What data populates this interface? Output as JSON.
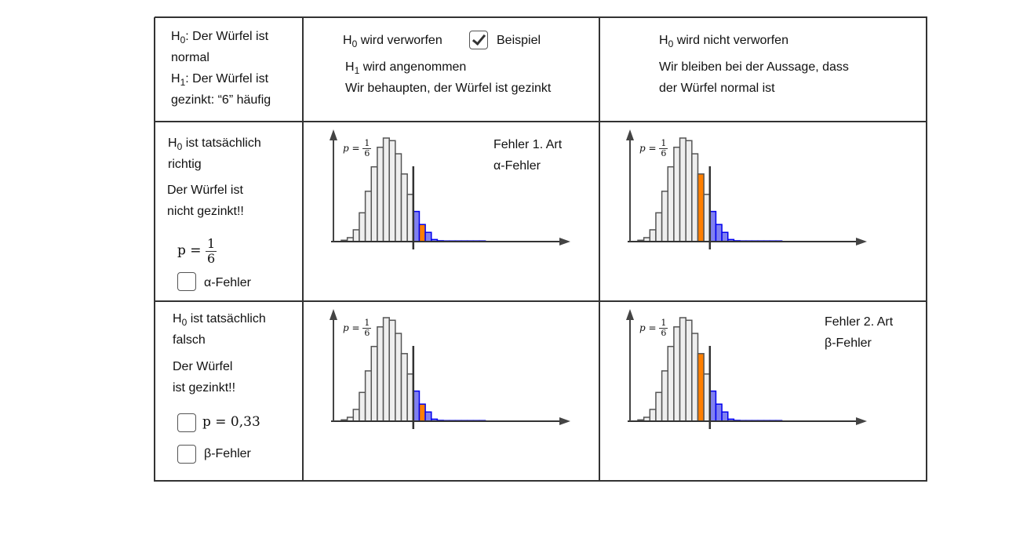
{
  "header": {
    "hypotheses": {
      "h0_label": "H",
      "h0_sub": "0",
      "h0_text": ": Der Würfel ist",
      "h0_line2": "normal",
      "h1_label": "H",
      "h1_sub": "1",
      "h1_text": ": Der Würfel ist",
      "h1_line2": "gezinkt: “6” häufig"
    },
    "rejected": {
      "line1_prefix": "H",
      "line1_sub": "0",
      "line1_text": " wird verworfen",
      "example_checkbox_label": "Beispiel",
      "example_checked": true,
      "line2_prefix": "H",
      "line2_sub": "1",
      "line2_text": " wird angenommen",
      "line3": "Wir behaupten, der Würfel ist gezinkt"
    },
    "not_rejected": {
      "line1_prefix": "H",
      "line1_sub": "0",
      "line1_text": " wird nicht verworfen",
      "line2": "Wir bleiben bei der Aussage, dass",
      "line3": "der Würfel normal ist"
    }
  },
  "rows": [
    {
      "title_prefix": "H",
      "title_sub": "0",
      "title_text": " ist tatsächlich",
      "title_line2": "richtig",
      "desc_line1": "Der Würfel ist",
      "desc_line2": "nicht gezinkt!!",
      "p_label": "p =",
      "p_num": "1",
      "p_den": "6",
      "checkbox_label": "α-Fehler",
      "checkbox_checked": false
    },
    {
      "title_prefix": "H",
      "title_sub": "0",
      "title_text": " ist tatsächlich",
      "title_line2": "falsch",
      "desc_line1": "Der Würfel",
      "desc_line2": "ist gezinkt!!",
      "p_checkbox_label": "p = 0,33",
      "p_checkbox_checked": false,
      "checkbox_label": "β-Fehler",
      "checkbox_checked": false
    }
  ],
  "error_labels": {
    "type1_line1": "Fehler 1. Art",
    "type1_line2": "α-Fehler",
    "type2_line1": "Fehler 2. Art",
    "type2_line2": "β-Fehler"
  },
  "colors": {
    "grey_bar": "#eeeeee",
    "grey_stroke": "#555555",
    "rejection_fill": "#8080f0",
    "rejection_stroke": "#0000ee",
    "highlight": "#ff7f00"
  },
  "chart_data": [
    {
      "type": "bar",
      "cell": "true-rejected",
      "label_p": "p =",
      "p_num": "1",
      "p_den": "6",
      "relative_heights": [
        0.013,
        0.038,
        0.114,
        0.278,
        0.486,
        0.722,
        0.911,
        1,
        0.975,
        0.848,
        0.653,
        0.456,
        0.291,
        0.165,
        0.089,
        0.02,
        0.008,
        0.004,
        0.002,
        0.001,
        0.001,
        0.001,
        0.001,
        0.001
      ],
      "rejection_start_index": 12,
      "highlight_index": 13
    },
    {
      "type": "bar",
      "cell": "true-not-rejected",
      "label_p": "p =",
      "p_num": "1",
      "p_den": "6",
      "relative_heights": [
        0.013,
        0.038,
        0.114,
        0.278,
        0.486,
        0.722,
        0.911,
        1,
        0.975,
        0.848,
        0.653,
        0.456,
        0.291,
        0.165,
        0.089,
        0.02,
        0.008,
        0.004,
        0.002,
        0.001,
        0.001,
        0.001,
        0.001,
        0.001
      ],
      "rejection_start_index": 12,
      "highlight_index": 10
    },
    {
      "type": "bar",
      "cell": "false-rejected",
      "label_p": "p =",
      "p_num": "1",
      "p_den": "6",
      "relative_heights": [
        0.013,
        0.038,
        0.114,
        0.278,
        0.486,
        0.722,
        0.911,
        1,
        0.975,
        0.848,
        0.653,
        0.456,
        0.291,
        0.165,
        0.089,
        0.02,
        0.008,
        0.004,
        0.002,
        0.001,
        0.001,
        0.001,
        0.001,
        0.001
      ],
      "rejection_start_index": 12,
      "highlight_index": 13
    },
    {
      "type": "bar",
      "cell": "false-not-rejected",
      "label_p": "p =",
      "p_num": "1",
      "p_den": "6",
      "relative_heights": [
        0.013,
        0.038,
        0.114,
        0.278,
        0.486,
        0.722,
        0.911,
        1,
        0.975,
        0.848,
        0.653,
        0.456,
        0.291,
        0.165,
        0.089,
        0.02,
        0.008,
        0.004,
        0.002,
        0.001,
        0.001,
        0.001,
        0.001,
        0.001
      ],
      "rejection_start_index": 12,
      "highlight_index": 10
    }
  ]
}
